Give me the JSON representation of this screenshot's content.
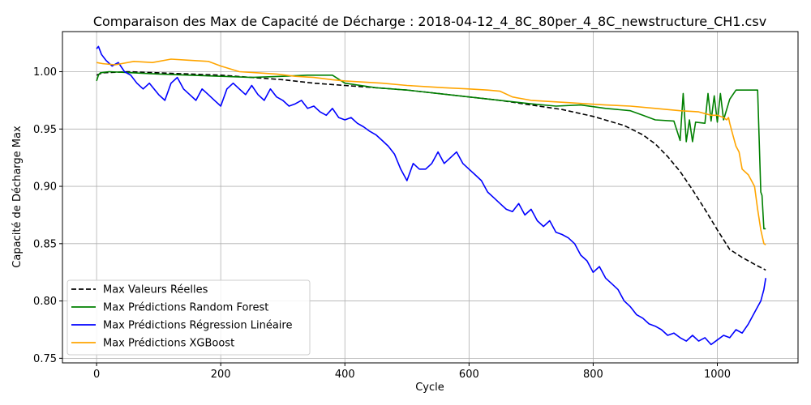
{
  "chart_data": {
    "type": "line",
    "title": "Comparaison des Max de Capacité de Décharge : 2018-04-12_4_8C_80per_4_8C_newstructure_CH1.csv",
    "xlabel": "Cycle",
    "ylabel": "Capacité de Décharge Max",
    "xlim": [
      -55,
      1130
    ],
    "ylim": [
      0.746,
      1.035
    ],
    "xticks": [
      0,
      200,
      400,
      600,
      800,
      1000
    ],
    "yticks": [
      0.75,
      0.8,
      0.85,
      0.9,
      0.95,
      1.0
    ],
    "xtick_labels": [
      "0",
      "200",
      "400",
      "600",
      "800",
      "1000"
    ],
    "ytick_labels": [
      "0.75",
      "0.80",
      "0.85",
      "0.90",
      "0.95",
      "1.00"
    ],
    "grid": true,
    "legend_position": "lower-left",
    "series": [
      {
        "name": "Max Valeurs Réelles",
        "color": "#000000",
        "dash": "dashed",
        "x": [
          0,
          10,
          50,
          100,
          150,
          200,
          250,
          300,
          350,
          400,
          450,
          500,
          550,
          600,
          650,
          700,
          750,
          800,
          850,
          880,
          900,
          920,
          940,
          960,
          980,
          1000,
          1020,
          1040,
          1060,
          1078
        ],
        "y": [
          0.997,
          0.999,
          1.0,
          0.999,
          0.998,
          0.997,
          0.995,
          0.993,
          0.99,
          0.988,
          0.986,
          0.984,
          0.981,
          0.978,
          0.975,
          0.971,
          0.967,
          0.961,
          0.953,
          0.945,
          0.937,
          0.926,
          0.913,
          0.897,
          0.88,
          0.862,
          0.845,
          0.838,
          0.832,
          0.827
        ]
      },
      {
        "name": "Max Prédictions Random Forest",
        "color": "#008000",
        "dash": "solid",
        "x": [
          0,
          3,
          6,
          20,
          60,
          100,
          150,
          200,
          250,
          300,
          340,
          380,
          400,
          450,
          500,
          550,
          600,
          650,
          700,
          740,
          780,
          820,
          860,
          880,
          900,
          930,
          940,
          945,
          950,
          955,
          960,
          965,
          980,
          985,
          990,
          995,
          1000,
          1005,
          1010,
          1020,
          1030,
          1050,
          1060,
          1065,
          1070,
          1072,
          1075,
          1078
        ],
        "y": [
          0.992,
          0.997,
          0.999,
          1.0,
          0.999,
          0.998,
          0.997,
          0.996,
          0.995,
          0.996,
          0.997,
          0.997,
          0.99,
          0.986,
          0.984,
          0.981,
          0.978,
          0.975,
          0.972,
          0.97,
          0.971,
          0.968,
          0.966,
          0.962,
          0.958,
          0.957,
          0.94,
          0.981,
          0.939,
          0.958,
          0.939,
          0.956,
          0.955,
          0.981,
          0.957,
          0.979,
          0.956,
          0.981,
          0.958,
          0.976,
          0.984,
          0.984,
          0.984,
          0.984,
          0.895,
          0.892,
          0.863,
          0.863
        ]
      },
      {
        "name": "Max Prédictions Régression Linéaire",
        "color": "#0000ff",
        "dash": "solid",
        "x": [
          0,
          3,
          8,
          15,
          25,
          35,
          45,
          55,
          65,
          75,
          85,
          100,
          110,
          120,
          130,
          140,
          150,
          160,
          170,
          180,
          190,
          200,
          210,
          220,
          230,
          240,
          250,
          260,
          270,
          280,
          290,
          300,
          310,
          320,
          330,
          340,
          350,
          360,
          370,
          380,
          390,
          400,
          410,
          420,
          430,
          440,
          450,
          460,
          470,
          480,
          490,
          500,
          510,
          520,
          530,
          540,
          550,
          560,
          570,
          580,
          590,
          600,
          610,
          620,
          630,
          640,
          650,
          660,
          670,
          680,
          690,
          700,
          710,
          720,
          730,
          740,
          750,
          760,
          770,
          780,
          790,
          800,
          810,
          820,
          830,
          840,
          850,
          860,
          870,
          880,
          890,
          900,
          910,
          920,
          930,
          940,
          950,
          960,
          970,
          980,
          990,
          1000,
          1010,
          1020,
          1030,
          1040,
          1050,
          1060,
          1070,
          1075,
          1078
        ],
        "y": [
          1.02,
          1.022,
          1.015,
          1.01,
          1.005,
          1.008,
          1.0,
          0.997,
          0.99,
          0.985,
          0.99,
          0.98,
          0.975,
          0.99,
          0.995,
          0.985,
          0.98,
          0.975,
          0.985,
          0.98,
          0.975,
          0.97,
          0.985,
          0.99,
          0.985,
          0.98,
          0.988,
          0.98,
          0.975,
          0.985,
          0.978,
          0.975,
          0.97,
          0.972,
          0.975,
          0.968,
          0.97,
          0.965,
          0.962,
          0.968,
          0.96,
          0.958,
          0.96,
          0.955,
          0.952,
          0.948,
          0.945,
          0.94,
          0.935,
          0.928,
          0.915,
          0.905,
          0.92,
          0.915,
          0.915,
          0.92,
          0.93,
          0.92,
          0.925,
          0.93,
          0.92,
          0.915,
          0.91,
          0.905,
          0.895,
          0.89,
          0.885,
          0.88,
          0.878,
          0.885,
          0.875,
          0.88,
          0.87,
          0.865,
          0.87,
          0.86,
          0.858,
          0.855,
          0.85,
          0.84,
          0.835,
          0.825,
          0.83,
          0.82,
          0.815,
          0.81,
          0.8,
          0.795,
          0.788,
          0.785,
          0.78,
          0.778,
          0.775,
          0.77,
          0.772,
          0.768,
          0.765,
          0.77,
          0.765,
          0.768,
          0.762,
          0.766,
          0.77,
          0.768,
          0.775,
          0.772,
          0.78,
          0.79,
          0.8,
          0.81,
          0.82
        ]
      },
      {
        "name": "Max Prédictions XGBoost",
        "color": "#ffa500",
        "dash": "solid",
        "x": [
          0,
          10,
          30,
          60,
          90,
          120,
          150,
          180,
          200,
          230,
          260,
          290,
          320,
          350,
          380,
          400,
          430,
          460,
          500,
          530,
          560,
          600,
          630,
          650,
          670,
          700,
          730,
          760,
          790,
          820,
          860,
          900,
          940,
          970,
          990,
          1000,
          1010,
          1015,
          1018,
          1020,
          1025,
          1030,
          1035,
          1040,
          1050,
          1060,
          1065,
          1070,
          1075,
          1078
        ],
        "y": [
          1.008,
          1.007,
          1.006,
          1.009,
          1.008,
          1.011,
          1.01,
          1.009,
          1.005,
          1.0,
          0.999,
          0.998,
          0.996,
          0.995,
          0.993,
          0.992,
          0.991,
          0.99,
          0.988,
          0.987,
          0.986,
          0.985,
          0.984,
          0.983,
          0.978,
          0.975,
          0.974,
          0.973,
          0.972,
          0.971,
          0.97,
          0.968,
          0.966,
          0.965,
          0.962,
          0.962,
          0.96,
          0.958,
          0.96,
          0.955,
          0.945,
          0.935,
          0.93,
          0.915,
          0.91,
          0.9,
          0.88,
          0.862,
          0.85,
          0.849
        ]
      }
    ]
  }
}
